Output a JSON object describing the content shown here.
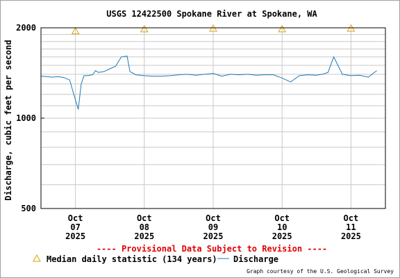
{
  "chart_data": {
    "type": "line",
    "title": "USGS 12422500 Spokane River at Spokane, WA",
    "ylabel": "Discharge, cubic feet per second",
    "xlabel": "",
    "y_scale": "log",
    "ylim": [
      500,
      2000
    ],
    "xlim": [
      "2025-10-06 12:00",
      "2025-10-11 12:00"
    ],
    "y_ticks": [
      "500",
      "1000",
      "2000"
    ],
    "x_ticks": [
      {
        "month": "Oct",
        "day": "07",
        "year": "2025"
      },
      {
        "month": "Oct",
        "day": "08",
        "year": "2025"
      },
      {
        "month": "Oct",
        "day": "09",
        "year": "2025"
      },
      {
        "month": "Oct",
        "day": "10",
        "year": "2025"
      },
      {
        "month": "Oct",
        "day": "11",
        "year": "2025"
      }
    ],
    "grid": true,
    "provisional_notice": "---- Provisional Data Subject to Revision ----",
    "credit": "Graph courtesy of the U.S. Geological Survey",
    "legend": {
      "placement": "bottom",
      "median_label": "Median daily statistic (134 years)",
      "discharge_label": "Discharge"
    },
    "colors": {
      "discharge": "#1f78b4",
      "median": "#e0a000",
      "provisional": "#e00000"
    },
    "series": [
      {
        "name": "Median daily statistic (134 years)",
        "marker": "triangle",
        "x": [
          "2025-10-07 00:00",
          "2025-10-08 00:00",
          "2025-10-09 00:00",
          "2025-10-10 00:00",
          "2025-10-11 00:00"
        ],
        "y": [
          1950,
          1980,
          1990,
          1980,
          1990
        ]
      },
      {
        "name": "Discharge",
        "x": [
          "2025-10-06 12:00",
          "2025-10-06 14:00",
          "2025-10-06 16:00",
          "2025-10-06 18:00",
          "2025-10-06 20:00",
          "2025-10-06 22:00",
          "2025-10-07 00:00",
          "2025-10-07 01:00",
          "2025-10-07 02:00",
          "2025-10-07 03:00",
          "2025-10-07 04:00",
          "2025-10-07 06:00",
          "2025-10-07 07:00",
          "2025-10-07 08:00",
          "2025-10-07 10:00",
          "2025-10-07 12:00",
          "2025-10-07 14:00",
          "2025-10-07 16:00",
          "2025-10-07 18:00",
          "2025-10-07 19:00",
          "2025-10-07 21:00",
          "2025-10-08 00:00",
          "2025-10-08 03:00",
          "2025-10-08 06:00",
          "2025-10-08 09:00",
          "2025-10-08 12:00",
          "2025-10-08 15:00",
          "2025-10-08 18:00",
          "2025-10-08 21:00",
          "2025-10-09 00:00",
          "2025-10-09 03:00",
          "2025-10-09 06:00",
          "2025-10-09 09:00",
          "2025-10-09 12:00",
          "2025-10-09 15:00",
          "2025-10-09 18:00",
          "2025-10-09 21:00",
          "2025-10-10 00:00",
          "2025-10-10 03:00",
          "2025-10-10 06:00",
          "2025-10-10 09:00",
          "2025-10-10 12:00",
          "2025-10-10 14:00",
          "2025-10-10 16:00",
          "2025-10-10 18:00",
          "2025-10-10 21:00",
          "2025-10-11 00:00",
          "2025-10-11 03:00",
          "2025-10-11 06:00",
          "2025-10-11 09:00"
        ],
        "y": [
          1380,
          1375,
          1370,
          1375,
          1365,
          1340,
          1150,
          1070,
          1300,
          1385,
          1385,
          1395,
          1440,
          1420,
          1430,
          1460,
          1490,
          1600,
          1610,
          1430,
          1395,
          1385,
          1380,
          1380,
          1385,
          1395,
          1400,
          1390,
          1400,
          1410,
          1380,
          1400,
          1395,
          1400,
          1390,
          1395,
          1395,
          1360,
          1320,
          1385,
          1395,
          1390,
          1400,
          1420,
          1600,
          1400,
          1385,
          1390,
          1370,
          1440
        ]
      }
    ]
  }
}
